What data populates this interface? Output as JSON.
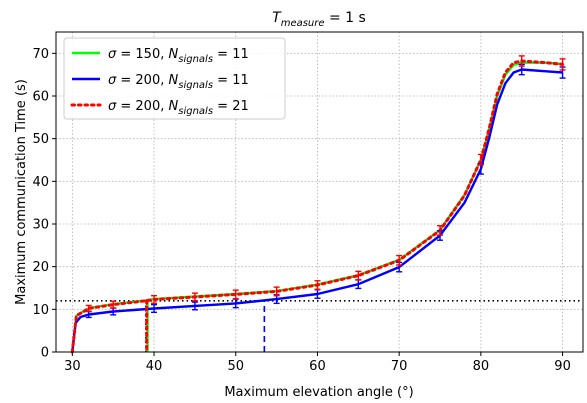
{
  "chart_data": {
    "type": "line",
    "title": "T_measure = 1 s",
    "title_parts": {
      "base": "T",
      "sub": "measure",
      "rest": " = 1 s"
    },
    "xlabel": "Maximum elevation angle (°)",
    "ylabel": "Maximum communication Time (s)",
    "xlim": [
      28,
      92.5
    ],
    "ylim": [
      0,
      75
    ],
    "xticks": [
      30,
      40,
      50,
      60,
      70,
      80,
      90
    ],
    "yticks": [
      0,
      10,
      20,
      30,
      40,
      50,
      60,
      70
    ],
    "grid": true,
    "legend_position": "top-left",
    "threshold": {
      "y": 12,
      "color": "#000000",
      "style": "dotted"
    },
    "vertical_markers": [
      {
        "x": 39,
        "y_top": 12,
        "color": "#000000",
        "style": "dotted"
      },
      {
        "x": 53.5,
        "y_top": 12,
        "color": "#0000ff",
        "style": "dashed"
      }
    ],
    "series": [
      {
        "legend": {
          "sigma": "150",
          "n": "11"
        },
        "color": "#00ff00",
        "style": "solid",
        "x": [
          30,
          30.5,
          32,
          35,
          39,
          40,
          45,
          50,
          55,
          60,
          65,
          70,
          75,
          78,
          80,
          81,
          82,
          83,
          84,
          85,
          88,
          90
        ],
        "y": [
          0,
          8.5,
          10.3,
          11.2,
          12.1,
          12.4,
          13.0,
          13.6,
          14.3,
          15.8,
          18.0,
          21.6,
          28.6,
          36.8,
          45.0,
          52.0,
          60.0,
          65.0,
          67.3,
          67.8,
          67.8,
          67.5
        ],
        "drop": {
          "x": 39.2,
          "from": 12.1,
          "to": 0
        }
      },
      {
        "legend": {
          "sigma": "200",
          "n": "11"
        },
        "color": "#0000ff",
        "style": "solid",
        "x": [
          30,
          30.4,
          31,
          32,
          35,
          40,
          45,
          50,
          55,
          60,
          65,
          70,
          75,
          78,
          80,
          81,
          82,
          83,
          84,
          85,
          88,
          90
        ],
        "y": [
          0,
          6.8,
          8.2,
          8.8,
          9.5,
          10.2,
          10.8,
          11.4,
          12.4,
          13.6,
          15.9,
          19.9,
          27.3,
          35.0,
          42.9,
          50.0,
          58.0,
          63.0,
          65.5,
          66.2,
          65.8,
          65.5
        ],
        "errors": [
          {
            "x": 32,
            "y": 8.8,
            "err": 0.7
          },
          {
            "x": 35,
            "y": 9.5,
            "err": 0.8
          },
          {
            "x": 40,
            "y": 10.2,
            "err": 0.9
          },
          {
            "x": 45,
            "y": 10.8,
            "err": 0.9
          },
          {
            "x": 50,
            "y": 11.4,
            "err": 1.0
          },
          {
            "x": 55,
            "y": 12.4,
            "err": 1.0
          },
          {
            "x": 60,
            "y": 13.6,
            "err": 1.0
          },
          {
            "x": 65,
            "y": 15.9,
            "err": 1.0
          },
          {
            "x": 70,
            "y": 19.9,
            "err": 1.1
          },
          {
            "x": 75,
            "y": 27.3,
            "err": 1.1
          },
          {
            "x": 80,
            "y": 42.9,
            "err": 1.2
          },
          {
            "x": 85,
            "y": 66.2,
            "err": 1.2
          },
          {
            "x": 90,
            "y": 65.5,
            "err": 1.3
          }
        ]
      },
      {
        "legend": {
          "sigma": "200",
          "n": "21"
        },
        "color": "#ff0000",
        "style": "dotted",
        "x": [
          30,
          30.5,
          32,
          35,
          39,
          40,
          45,
          50,
          55,
          60,
          65,
          70,
          75,
          78,
          80,
          81,
          82,
          83,
          84,
          85,
          88,
          90
        ],
        "y": [
          0,
          8.5,
          10.2,
          11.1,
          12.0,
          12.3,
          12.9,
          13.5,
          14.2,
          15.7,
          17.9,
          21.5,
          28.5,
          36.7,
          45.1,
          52.2,
          60.5,
          65.5,
          67.8,
          68.2,
          67.8,
          67.4
        ],
        "drop": {
          "x": 39.1,
          "from": 12.0,
          "to": 0
        },
        "errors": [
          {
            "x": 32,
            "y": 10.2,
            "err": 0.7
          },
          {
            "x": 35,
            "y": 11.1,
            "err": 0.8
          },
          {
            "x": 40,
            "y": 12.3,
            "err": 0.9
          },
          {
            "x": 45,
            "y": 12.9,
            "err": 0.9
          },
          {
            "x": 50,
            "y": 13.5,
            "err": 1.0
          },
          {
            "x": 55,
            "y": 14.2,
            "err": 1.0
          },
          {
            "x": 60,
            "y": 15.7,
            "err": 1.0
          },
          {
            "x": 65,
            "y": 17.9,
            "err": 1.0
          },
          {
            "x": 70,
            "y": 21.5,
            "err": 1.1
          },
          {
            "x": 75,
            "y": 28.5,
            "err": 1.1
          },
          {
            "x": 80,
            "y": 45.1,
            "err": 1.2
          },
          {
            "x": 85,
            "y": 68.2,
            "err": 1.2
          },
          {
            "x": 90,
            "y": 67.4,
            "err": 1.3
          }
        ]
      }
    ]
  }
}
